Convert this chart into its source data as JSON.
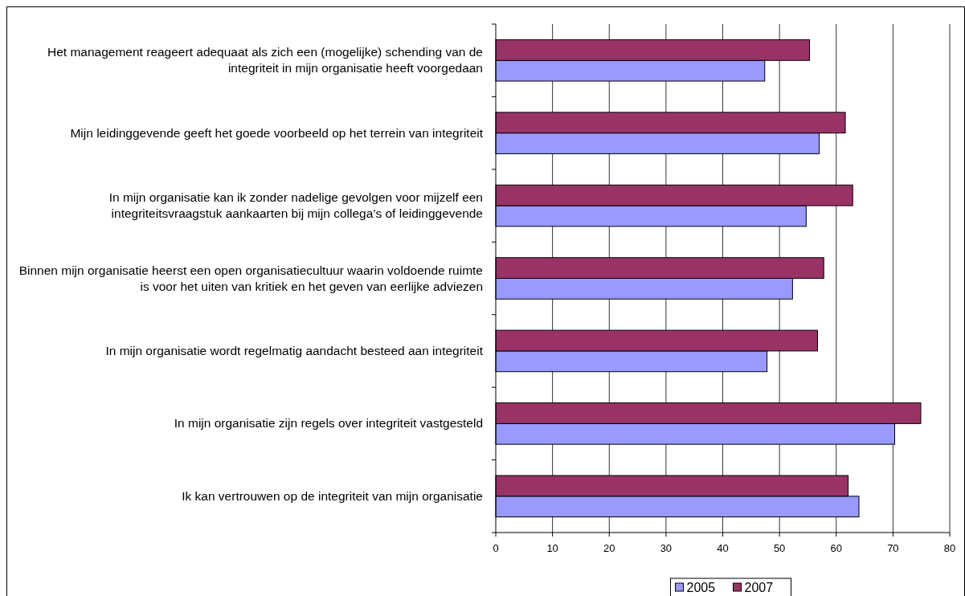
{
  "chart_data": {
    "type": "bar",
    "orientation": "horizontal",
    "categories": [
      "Het management reageert adequaat als zich een (mogelijke) schending van de integriteit in mijn organisatie heeft voorgedaan",
      "Mijn leidinggevende geeft het goede voorbeeld op het terrein van integriteit",
      "In mijn organisatie kan ik zonder nadelige gevolgen voor mijzelf een integriteitsvraagstuk aankaarten bij mijn collega’s of leidinggevende",
      "Binnen mijn organisatie heerst een open organisatiecultuur waarin voldoende ruimte is voor het uiten van kritiek en het geven van eerlijke adviezen",
      "In mijn organisatie wordt regelmatig aandacht besteed aan integriteit",
      "In mijn organisatie zijn regels over integriteit vastgesteld",
      "Ik kan vertrouwen op de integriteit van mijn organisatie"
    ],
    "series": [
      {
        "name": "2005",
        "color": "#9999ff",
        "values": [
          47.4,
          57.0,
          54.7,
          52.3,
          47.8,
          70.3,
          64.0
        ]
      },
      {
        "name": "2007",
        "color": "#993366",
        "values": [
          55.3,
          61.6,
          62.9,
          57.8,
          56.7,
          74.9,
          62.1
        ]
      }
    ],
    "xlim": [
      0,
      80
    ],
    "xticks": [
      0,
      10,
      20,
      30,
      40,
      50,
      60,
      70,
      80
    ],
    "grid": "x",
    "legend": "bottom"
  }
}
